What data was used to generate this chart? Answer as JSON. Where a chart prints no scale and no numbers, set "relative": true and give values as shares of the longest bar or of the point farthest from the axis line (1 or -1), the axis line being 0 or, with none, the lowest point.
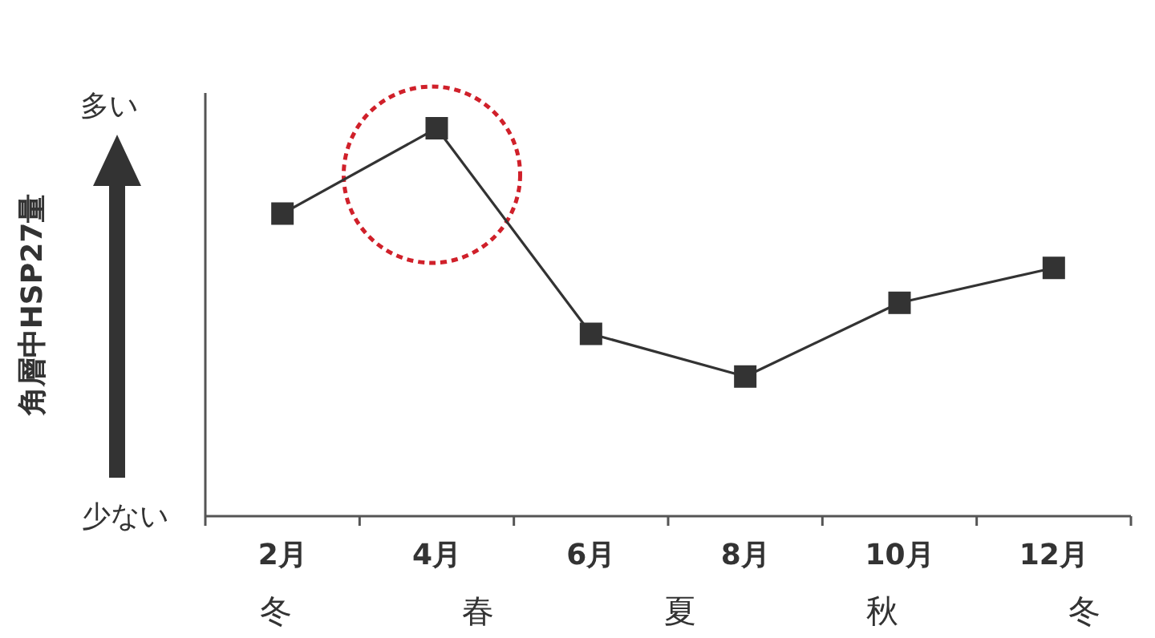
{
  "chart_data": {
    "type": "line",
    "relative": true,
    "categories": [
      "2月",
      "4月",
      "6月",
      "8月",
      "10月",
      "12月"
    ],
    "series": [
      {
        "color": "#333333",
        "values": [
          0.78,
          1,
          0.47,
          0.36,
          0.55,
          0.64
        ]
      }
    ],
    "marker": "square",
    "line_style": "solid",
    "annotations": [
      "角層中HSP27量",
      "多い",
      "少ない",
      "冬",
      "春",
      "夏",
      "秋",
      "冬"
    ]
  }
}
